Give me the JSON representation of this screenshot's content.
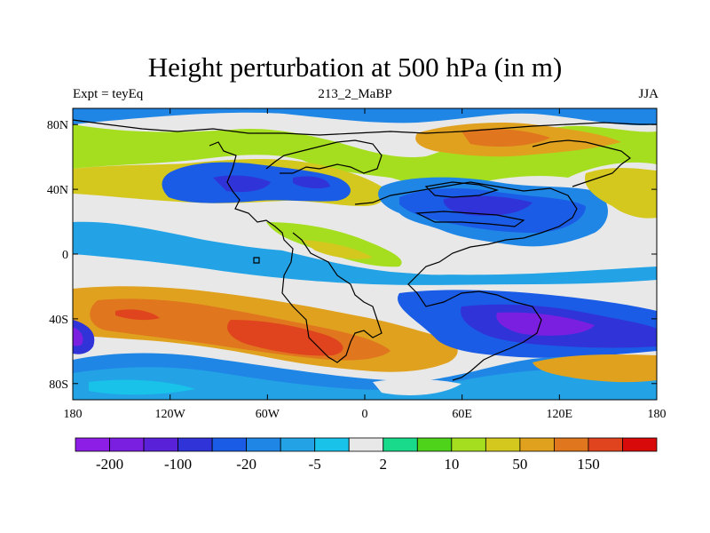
{
  "title": "Height perturbation at 500 hPa (in m)",
  "left_label": "Expt = teyEq",
  "center_label": "213_2_MaBP",
  "right_label": "JJA",
  "lat_ticks": [
    {
      "value": 80,
      "label": "80N"
    },
    {
      "value": 40,
      "label": "40N"
    },
    {
      "value": 0,
      "label": "0"
    },
    {
      "value": -40,
      "label": "40S"
    },
    {
      "value": -80,
      "label": "80S"
    }
  ],
  "lon_ticks": [
    {
      "value": -180,
      "label": "180"
    },
    {
      "value": -120,
      "label": "120W"
    },
    {
      "value": -60,
      "label": "60W"
    },
    {
      "value": 0,
      "label": "0"
    },
    {
      "value": 60,
      "label": "60E"
    },
    {
      "value": 120,
      "label": "120E"
    },
    {
      "value": 180,
      "label": "180"
    }
  ],
  "colorbar": {
    "colors": [
      "#8c1ee6",
      "#7a1fe0",
      "#5a22d8",
      "#3034d8",
      "#1a5ce6",
      "#1f86e6",
      "#23a3e6",
      "#18c2e8",
      "#e8e8e8",
      "#19d98a",
      "#4fd21a",
      "#a5de1e",
      "#d4c81e",
      "#e0a21e",
      "#e0761e",
      "#e0441e",
      "#d80a0a"
    ],
    "labels": [
      {
        "after_box": 1,
        "text": "-200"
      },
      {
        "after_box": 3,
        "text": "-100"
      },
      {
        "after_box": 5,
        "text": "-20"
      },
      {
        "after_box": 7,
        "text": "-5"
      },
      {
        "after_box": 9,
        "text": "2"
      },
      {
        "after_box": 11,
        "text": "10"
      },
      {
        "after_box": 13,
        "text": "50"
      },
      {
        "after_box": 15,
        "text": "150"
      }
    ]
  },
  "map": {
    "lon_range": [
      -180,
      180
    ],
    "lat_range": [
      -90,
      90
    ],
    "background": "#e8e8e8"
  }
}
